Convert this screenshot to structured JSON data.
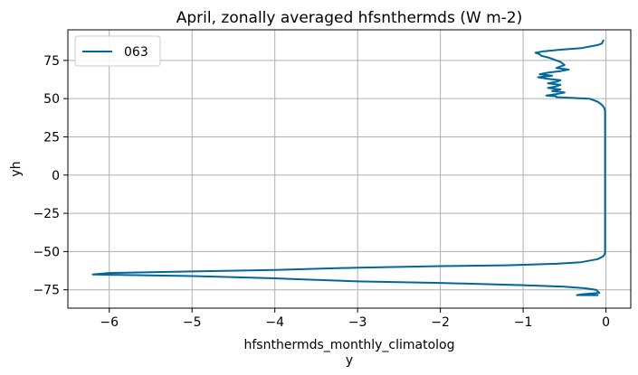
{
  "chart_data": {
    "type": "line",
    "title": "April, zonally averaged hfsnthermds (W m-2)",
    "xlabel": "hfsnthermds_monthly_climatolog",
    "xlabel_line2": "y",
    "ylabel": "yh",
    "xlim": [
      -6.5,
      0.3
    ],
    "ylim": [
      -87,
      95
    ],
    "xticks": [
      -6,
      -5,
      -4,
      -3,
      -2,
      -1,
      0
    ],
    "yticks": [
      -75,
      -50,
      -25,
      0,
      25,
      50,
      75
    ],
    "xtick_labels": [
      "−6",
      "−5",
      "−4",
      "−3",
      "−2",
      "−1",
      "0"
    ],
    "ytick_labels": [
      "−75",
      "−50",
      "−25",
      "0",
      "25",
      "50",
      "75"
    ],
    "grid": true,
    "legend_position": "top-left",
    "series": [
      {
        "name": "063",
        "color": "#00679b",
        "points": [
          [
            -0.03,
            88
          ],
          [
            -0.05,
            86
          ],
          [
            -0.1,
            85
          ],
          [
            -0.3,
            83
          ],
          [
            -0.55,
            82
          ],
          [
            -0.75,
            81
          ],
          [
            -0.85,
            80
          ],
          [
            -0.8,
            79
          ],
          [
            -0.78,
            78
          ],
          [
            -0.7,
            77
          ],
          [
            -0.6,
            75
          ],
          [
            -0.55,
            74
          ],
          [
            -0.5,
            72
          ],
          [
            -0.55,
            71
          ],
          [
            -0.6,
            70
          ],
          [
            -0.45,
            69
          ],
          [
            -0.55,
            68
          ],
          [
            -0.7,
            67
          ],
          [
            -0.8,
            66
          ],
          [
            -0.65,
            65
          ],
          [
            -0.82,
            64
          ],
          [
            -0.7,
            63
          ],
          [
            -0.55,
            62
          ],
          [
            -0.6,
            61
          ],
          [
            -0.7,
            60
          ],
          [
            -0.55,
            59
          ],
          [
            -0.6,
            58
          ],
          [
            -0.7,
            57
          ],
          [
            -0.55,
            56
          ],
          [
            -0.65,
            55
          ],
          [
            -0.5,
            54
          ],
          [
            -0.6,
            53
          ],
          [
            -0.72,
            52
          ],
          [
            -0.6,
            51.5
          ],
          [
            -0.6,
            51
          ],
          [
            -0.2,
            50
          ],
          [
            -0.1,
            48
          ],
          [
            -0.05,
            46
          ],
          [
            -0.02,
            44
          ],
          [
            -0.01,
            42
          ],
          [
            -0.01,
            30
          ],
          [
            -0.01,
            0
          ],
          [
            -0.01,
            -30
          ],
          [
            -0.01,
            -51
          ],
          [
            -0.03,
            -53
          ],
          [
            -0.1,
            -55
          ],
          [
            -0.3,
            -57
          ],
          [
            -0.6,
            -58
          ],
          [
            -1.2,
            -59
          ],
          [
            -2.0,
            -59.5
          ],
          [
            -3.0,
            -60.5
          ],
          [
            -4.0,
            -62
          ],
          [
            -5.0,
            -63
          ],
          [
            -6.0,
            -64
          ],
          [
            -6.2,
            -65
          ],
          [
            -5.0,
            -66
          ],
          [
            -4.0,
            -67.5
          ],
          [
            -3.8,
            -68
          ],
          [
            -3.0,
            -69.5
          ],
          [
            -2.0,
            -70.5
          ],
          [
            -1.0,
            -72
          ],
          [
            -0.5,
            -73
          ],
          [
            -0.25,
            -74
          ],
          [
            -0.12,
            -75
          ],
          [
            -0.1,
            -76
          ],
          [
            -0.08,
            -77
          ],
          [
            -0.3,
            -78
          ],
          [
            -0.35,
            -78.5
          ],
          [
            -0.1,
            -78.5
          ]
        ]
      }
    ]
  }
}
